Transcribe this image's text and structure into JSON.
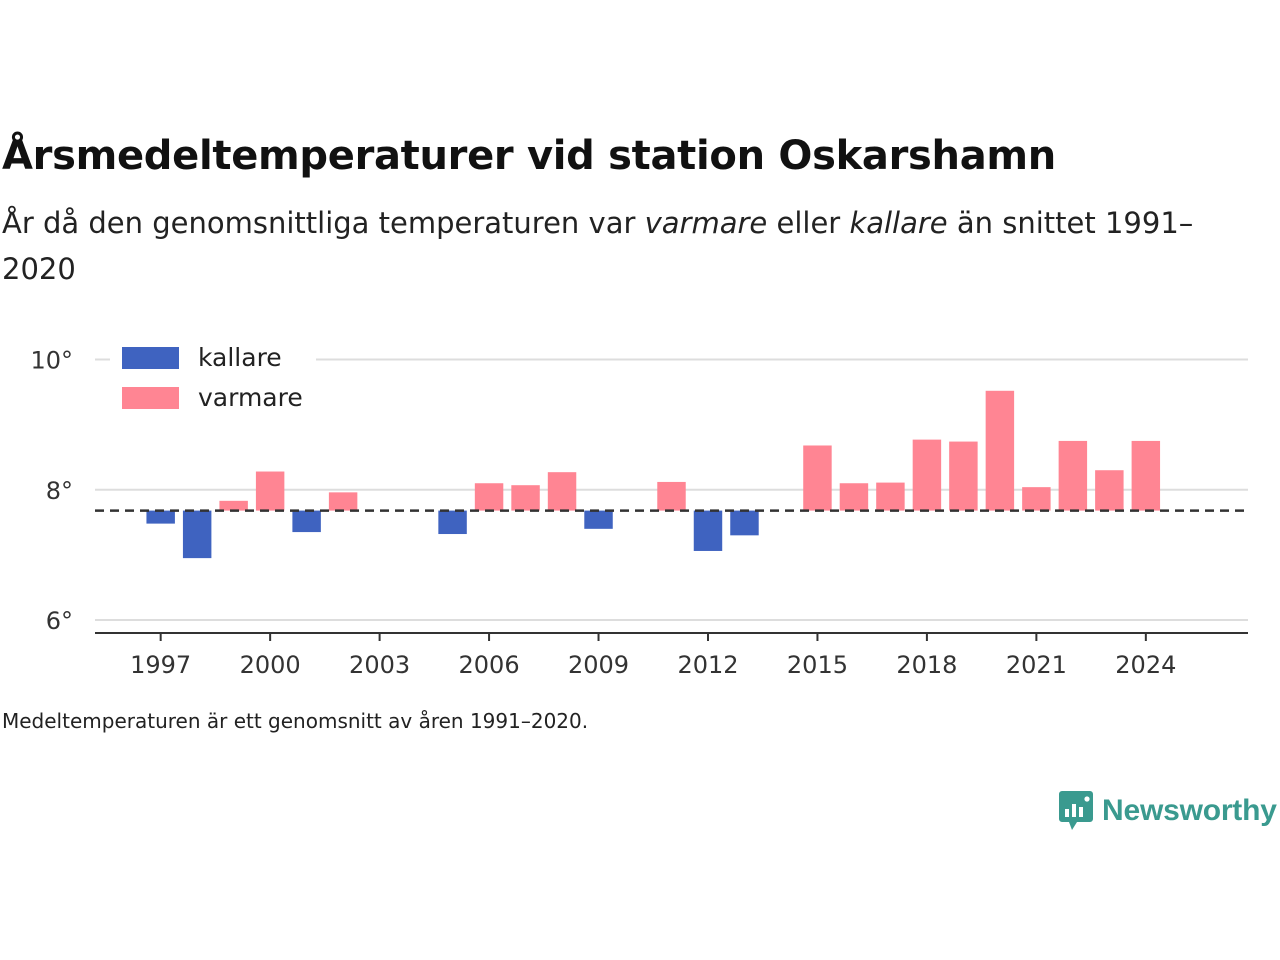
{
  "header": {
    "title": "Årsmedeltemperaturer vid station Oskarshamn",
    "subtitle_pre": "År då den genomsnittliga temperaturen var ",
    "subtitle_warm": "varmare",
    "subtitle_mid": " eller ",
    "subtitle_cold": "kallare",
    "subtitle_post": " än snittet 1991–2020"
  },
  "footnote": "Medeltemperaturen är ett genomsnitt av åren 1991–2020.",
  "brand": {
    "name": "Newsworthy",
    "icon": "newsworthy-logo-icon",
    "color": "#3a9a8f"
  },
  "colors": {
    "kallare": "#3f63c0",
    "varmare": "#ff8593",
    "baseline": "#333333",
    "grid": "#dddddd"
  },
  "chart_data": {
    "type": "bar",
    "baseline": 7.68,
    "ylim": [
      5.8,
      10.3
    ],
    "xlim": [
      1995.2,
      2026.8
    ],
    "yticks": [
      6,
      8,
      10
    ],
    "ytick_labels": [
      "6°",
      "8°",
      "10°"
    ],
    "xticks": [
      1997,
      2000,
      2003,
      2006,
      2009,
      2012,
      2015,
      2018,
      2021,
      2024
    ],
    "xtick_labels": [
      "1997",
      "2000",
      "2003",
      "2006",
      "2009",
      "2012",
      "2015",
      "2018",
      "2021",
      "2024"
    ],
    "legend": {
      "position": "top-left",
      "entries": [
        {
          "key": "kallare",
          "label": "kallare"
        },
        {
          "key": "varmare",
          "label": "varmare"
        }
      ]
    },
    "years": [
      1997,
      1998,
      1999,
      2000,
      2001,
      2002,
      2005,
      2006,
      2007,
      2008,
      2009,
      2011,
      2012,
      2013,
      2015,
      2016,
      2017,
      2018,
      2019,
      2020,
      2021,
      2022,
      2023,
      2024
    ],
    "values": [
      7.48,
      6.95,
      7.83,
      8.28,
      7.35,
      7.96,
      7.32,
      8.1,
      8.07,
      8.27,
      7.4,
      8.12,
      7.06,
      7.3,
      8.68,
      8.1,
      8.11,
      8.77,
      8.74,
      9.52,
      8.04,
      8.75,
      8.3,
      8.75
    ]
  }
}
